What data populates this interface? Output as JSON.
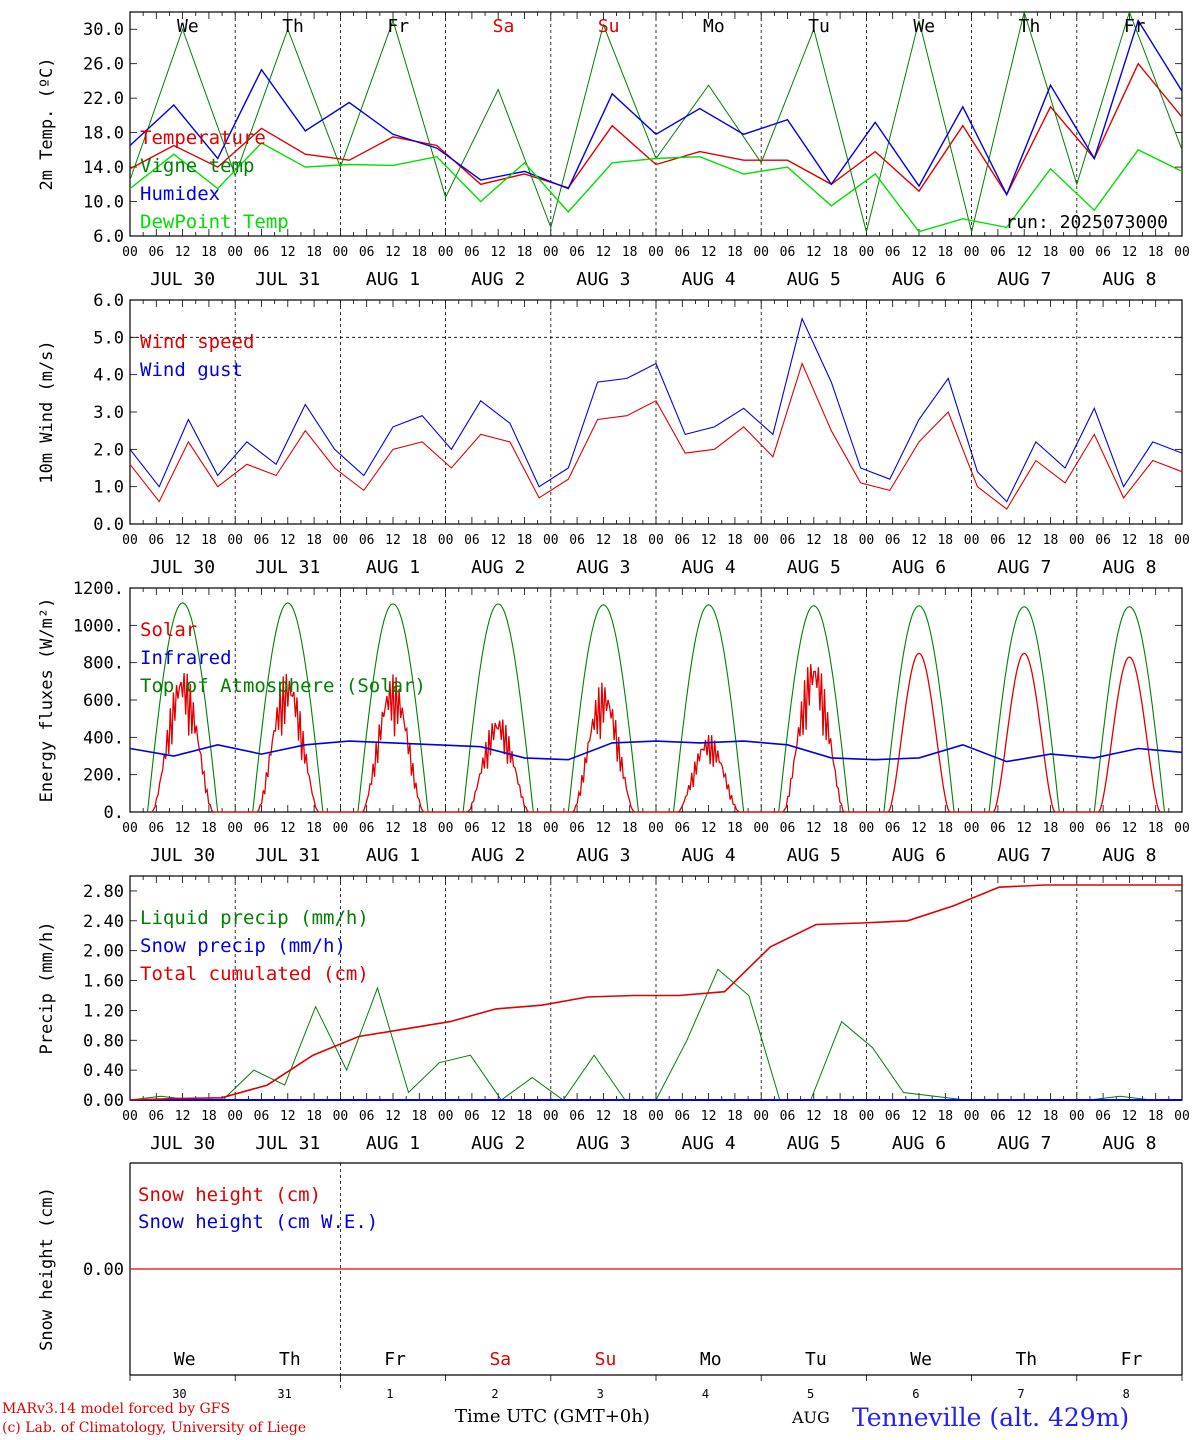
{
  "colors": {
    "red": "#e00000",
    "green": "#008000",
    "blue": "#0000e6",
    "lightgreen": "#00e000",
    "station": "#2020ff"
  },
  "weekdays": [
    "We",
    "Th",
    "Fr",
    "Sa",
    "Su",
    "Mo",
    "Tu",
    "We",
    "Th",
    "Fr"
  ],
  "weekend_flags": [
    false,
    false,
    false,
    true,
    true,
    false,
    false,
    false,
    false,
    false
  ],
  "date_labels": [
    "JUL 30",
    "JUL 31",
    "AUG  1",
    "AUG  2",
    "AUG  3",
    "AUG  4",
    "AUG  5",
    "AUG  6",
    "AUG  7",
    "AUG  8"
  ],
  "hour_ticks": [
    "00",
    "06",
    "12",
    "18"
  ],
  "final_hour_label": "00",
  "day_numbers": [
    "30",
    "31",
    "1",
    "2",
    "3",
    "4",
    "5",
    "6",
    "7",
    "8"
  ],
  "chart_data": [
    {
      "type": "line",
      "id": "temperature",
      "ylabel": "2m Temp. (ºC)",
      "ylim": [
        6.0,
        32.0
      ],
      "yticks": [
        "6.0",
        "10.0",
        "14.0",
        "18.0",
        "22.0",
        "26.0",
        "30.0"
      ],
      "run_label": "run: 2025073000",
      "x_hours_from": "2025-07-30 00 UTC",
      "x_step_hours": 12,
      "series": [
        {
          "name": "Temperature",
          "color": "#e00000",
          "values": [
            13.8,
            16.5,
            14.0,
            18.5,
            15.5,
            14.8,
            17.5,
            16.5,
            12.0,
            13.2,
            11.6,
            18.8,
            14.3,
            15.8,
            14.8,
            14.8,
            12.0,
            15.8,
            11.2,
            18.8,
            10.8,
            21.0,
            15.0,
            26.0,
            19.8
          ]
        },
        {
          "name": "Vigne temp",
          "color": "#008000",
          "values": [
            12.5,
            30.0,
            13.0,
            30.0,
            14.0,
            31.0,
            10.5,
            23.0,
            7.0,
            30.5,
            15.0,
            23.5,
            14.5,
            30.0,
            6.5,
            31.0,
            6.5,
            32.0,
            12.0,
            32.0,
            16.0
          ]
        },
        {
          "name": "Humidex",
          "color": "#0000e6",
          "values": [
            16.5,
            21.2,
            15.0,
            25.3,
            18.2,
            21.5,
            17.8,
            16.2,
            12.5,
            13.5,
            11.5,
            22.5,
            17.8,
            20.8,
            17.8,
            19.5,
            12.0,
            19.2,
            11.8,
            21.0,
            10.8,
            23.5,
            15.0,
            31.0,
            22.8
          ]
        },
        {
          "name": "DewPoint Temp",
          "color": "#00e000",
          "values": [
            11.5,
            15.5,
            11.5,
            16.8,
            14.0,
            14.3,
            14.2,
            15.2,
            10.0,
            14.5,
            8.8,
            14.5,
            15.0,
            15.2,
            13.2,
            14.0,
            9.5,
            13.2,
            6.5,
            8.0,
            7.0,
            13.8,
            9.0,
            16.0,
            13.5
          ]
        }
      ]
    },
    {
      "type": "line",
      "id": "wind",
      "ylabel": "10m Wind (m/s)",
      "ylim": [
        0.0,
        6.0
      ],
      "yticks": [
        "0.0",
        "1.0",
        "2.0",
        "3.0",
        "4.0",
        "5.0",
        "6.0"
      ],
      "ref_line": 5.0,
      "series": [
        {
          "name": "Wind speed",
          "color": "#e00000",
          "values": [
            1.6,
            0.6,
            2.2,
            1.0,
            1.6,
            1.3,
            2.5,
            1.5,
            0.9,
            2.0,
            2.2,
            1.5,
            2.4,
            2.2,
            0.7,
            1.2,
            2.8,
            2.9,
            3.3,
            1.9,
            2.0,
            2.6,
            1.8,
            4.3,
            2.5,
            1.1,
            0.9,
            2.2,
            3.0,
            1.0,
            0.4,
            1.7,
            1.1,
            2.4,
            0.7,
            1.7,
            1.4
          ]
        },
        {
          "name": "Wind gust",
          "color": "#0000e6",
          "values": [
            2.0,
            1.0,
            2.8,
            1.3,
            2.2,
            1.6,
            3.2,
            2.0,
            1.3,
            2.6,
            2.9,
            2.0,
            3.3,
            2.7,
            1.0,
            1.5,
            3.8,
            3.9,
            4.3,
            2.4,
            2.6,
            3.1,
            2.4,
            5.5,
            3.8,
            1.5,
            1.2,
            2.8,
            3.9,
            1.4,
            0.6,
            2.2,
            1.5,
            3.1,
            1.0,
            2.2,
            1.9
          ]
        }
      ]
    },
    {
      "type": "line",
      "id": "energy",
      "ylabel": "Energy fluxes (W/m²)",
      "ylim": [
        0,
        1200
      ],
      "yticks": [
        "0.",
        "200.",
        "400.",
        "600.",
        "800.",
        "1000.",
        "1200."
      ],
      "series": [
        {
          "name": "Solar",
          "color": "#e00000",
          "daily_peaks": [
            780,
            760,
            740,
            530,
            700,
            420,
            850,
            850,
            850,
            830
          ]
        },
        {
          "name": "Infrared",
          "color": "#0000e6",
          "values": [
            340,
            300,
            360,
            310,
            360,
            380,
            370,
            360,
            350,
            290,
            280,
            370,
            380,
            370,
            380,
            360,
            290,
            280,
            290,
            360,
            270,
            310,
            290,
            340,
            320
          ]
        },
        {
          "name": "Top of Atmosphere (Solar)",
          "color": "#008000",
          "daily_peaks": [
            1120,
            1120,
            1115,
            1115,
            1110,
            1110,
            1105,
            1105,
            1100,
            1100
          ]
        }
      ]
    },
    {
      "type": "line",
      "id": "precip",
      "ylabel": "Precip (mm/h)",
      "ylim": [
        0.0,
        3.0
      ],
      "yticks": [
        "0.00",
        "0.40",
        "0.80",
        "1.20",
        "1.60",
        "2.00",
        "2.40",
        "2.80"
      ],
      "series": [
        {
          "name": "Liquid precip (mm/h)",
          "color": "#008000",
          "values": [
            0,
            0.05,
            0,
            0,
            0.4,
            0.2,
            1.25,
            0.4,
            1.5,
            0.1,
            0.5,
            0.6,
            0,
            0.3,
            0,
            0.6,
            0,
            0,
            0.8,
            1.75,
            1.4,
            0,
            0,
            1.05,
            0.7,
            0.1,
            0.05,
            0,
            0,
            0,
            0,
            0,
            0.05,
            0,
            0
          ]
        },
        {
          "name": "Snow precip (mm/h)",
          "color": "#0000e6",
          "values": [
            0,
            0,
            0,
            0,
            0,
            0,
            0,
            0,
            0,
            0
          ]
        },
        {
          "name": "Total cumulated (cm)",
          "color": "#e00000",
          "values": [
            0,
            0.02,
            0.03,
            0.2,
            0.6,
            0.85,
            0.95,
            1.05,
            1.22,
            1.27,
            1.38,
            1.4,
            1.4,
            1.45,
            2.05,
            2.35,
            2.37,
            2.4,
            2.6,
            2.85,
            2.88,
            2.88,
            2.88,
            2.88
          ]
        }
      ]
    },
    {
      "type": "line",
      "id": "snow",
      "ylabel": "Snow height (cm)",
      "ylim": [
        -1,
        1
      ],
      "yticks": [
        "0.00"
      ],
      "series": [
        {
          "name": "Snow height (cm)",
          "color": "#e00000",
          "values": [
            0,
            0
          ]
        },
        {
          "name": "Snow height (cm W.E.)",
          "color": "#0000e6",
          "values": []
        }
      ]
    }
  ],
  "footer": {
    "model": "MARv3.14 model forced by GFS",
    "lab": "(c) Lab. of Climatology, University of Liege",
    "xlabel": "Time UTC (GMT+0h)",
    "month": "AUG",
    "station": "Tenneville (alt. 429m)"
  }
}
